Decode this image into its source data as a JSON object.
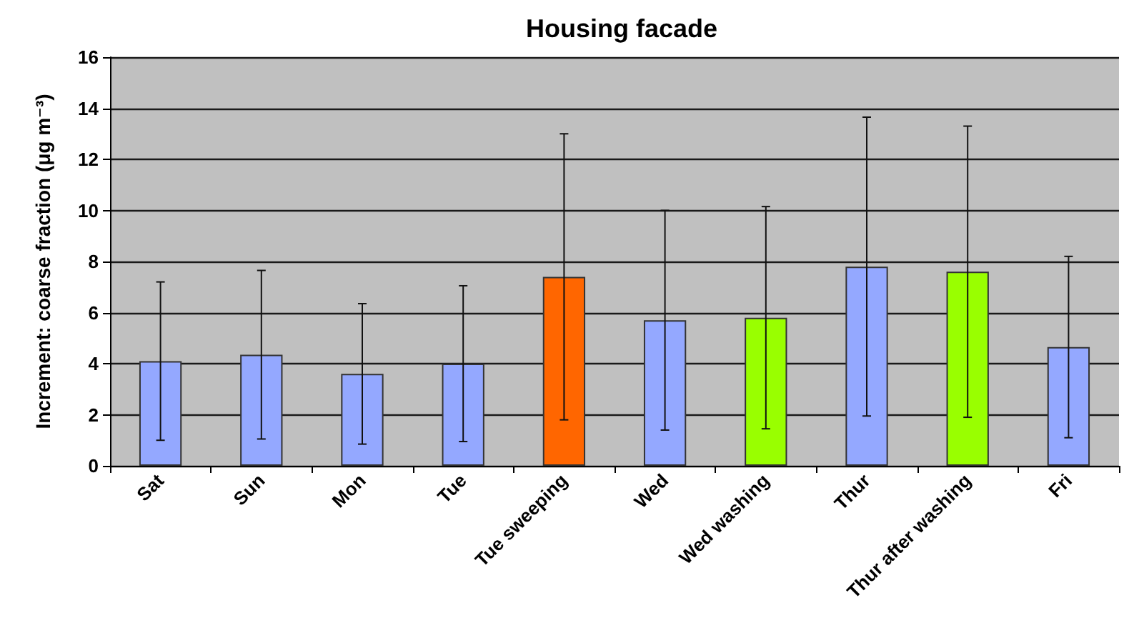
{
  "chart_data": {
    "type": "bar",
    "title": "Housing facade",
    "ylabel": "Increment: coarse fraction (μg m⁻³)",
    "categories": [
      "Sat",
      "Sun",
      "Mon",
      "Tue",
      "Tue sweeping",
      "Wed",
      "Wed washing",
      "Thur",
      "Thur after washing",
      "Fri"
    ],
    "values": [
      4.1,
      4.35,
      3.6,
      4.0,
      7.4,
      5.7,
      5.8,
      7.8,
      7.6,
      4.65
    ],
    "errors": [
      3.1,
      3.3,
      2.75,
      3.05,
      5.6,
      4.3,
      4.35,
      5.85,
      5.7,
      3.55
    ],
    "colors": [
      "#94a8ff",
      "#94a8ff",
      "#94a8ff",
      "#94a8ff",
      "#ff6600",
      "#94a8ff",
      "#99ff00",
      "#94a8ff",
      "#99ff00",
      "#94a8ff"
    ],
    "ylim": [
      0,
      16
    ],
    "yticks": [
      0,
      2,
      4,
      6,
      8,
      10,
      12,
      14,
      16
    ],
    "grid": "y"
  }
}
